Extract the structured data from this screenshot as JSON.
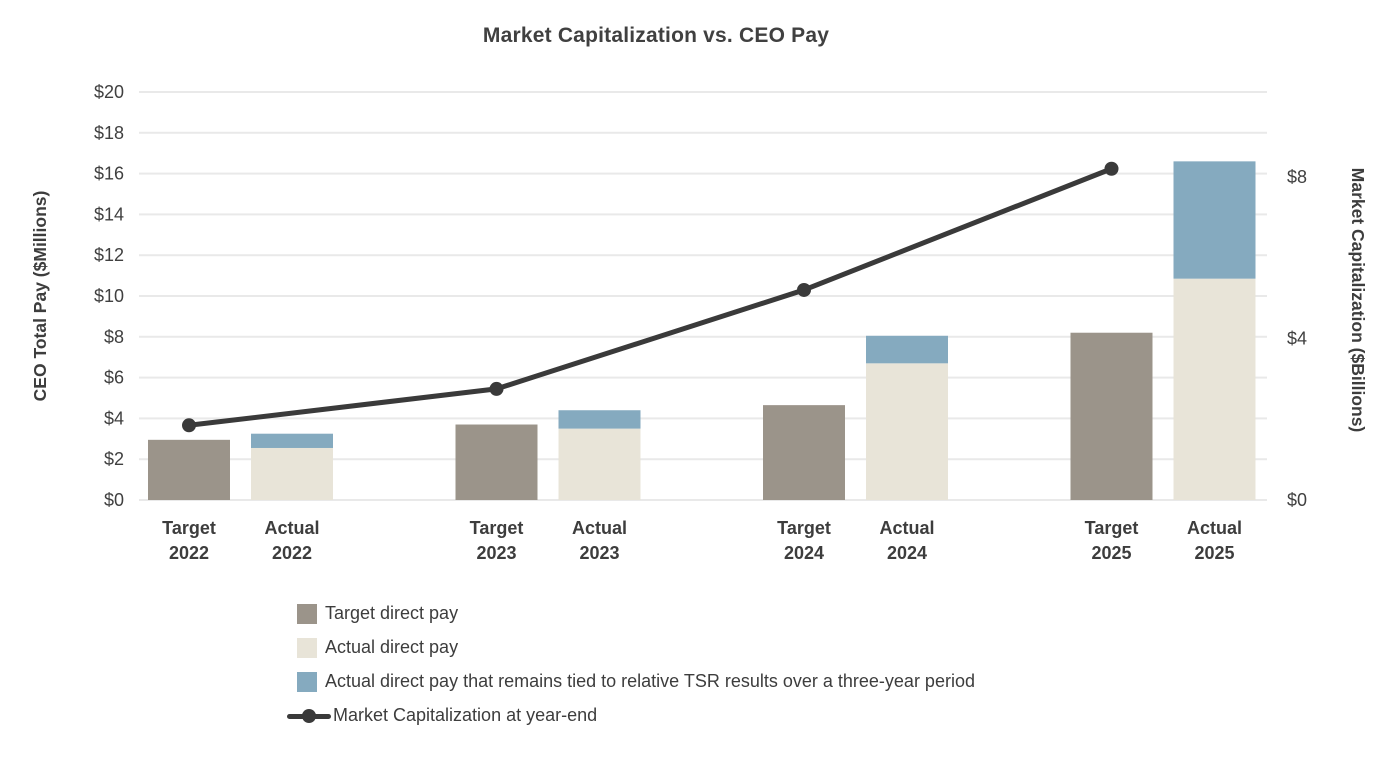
{
  "title": "Market Capitalization vs. CEO Pay",
  "chart_data": {
    "type": "combo_bar_line",
    "title": "Market Capitalization vs. CEO Pay",
    "grid": true,
    "years": [
      "2022",
      "2023",
      "2024",
      "2025"
    ],
    "x_labels": [
      {
        "top": "Target",
        "year": "2022"
      },
      {
        "top": "Actual",
        "year": "2022"
      },
      {
        "top": "Target",
        "year": "2023"
      },
      {
        "top": "Actual",
        "year": "2023"
      },
      {
        "top": "Target",
        "year": "2024"
      },
      {
        "top": "Actual",
        "year": "2024"
      },
      {
        "top": "Target",
        "year": "2025"
      },
      {
        "top": "Actual",
        "year": "2025"
      }
    ],
    "left_axis": {
      "label": "CEO Total Pay ($Millions)",
      "min": 0,
      "max": 20,
      "tick_step": 2,
      "ticks": [
        {
          "value": 0,
          "label": "$0"
        },
        {
          "value": 2,
          "label": "$2"
        },
        {
          "value": 4,
          "label": "$4"
        },
        {
          "value": 6,
          "label": "$6"
        },
        {
          "value": 8,
          "label": "$8"
        },
        {
          "value": 10,
          "label": "$10"
        },
        {
          "value": 12,
          "label": "$12"
        },
        {
          "value": 14,
          "label": "$14"
        },
        {
          "value": 16,
          "label": "$16"
        },
        {
          "value": 18,
          "label": "$18"
        },
        {
          "value": 20,
          "label": "$20"
        }
      ]
    },
    "right_axis": {
      "label": "Market Capitalization ($Billions)",
      "min": 0,
      "max": 10.1,
      "ticks": [
        {
          "value": 0,
          "label": "$0"
        },
        {
          "value": 4,
          "label": "$4"
        },
        {
          "value": 8,
          "label": "$8"
        }
      ]
    },
    "bar_series": [
      {
        "name": "Target direct pay",
        "bar": "target",
        "stack": 0,
        "color": "#9b948a",
        "values": [
          2.95,
          3.7,
          4.65,
          8.2
        ]
      },
      {
        "name": "Actual direct pay",
        "bar": "actual",
        "stack": 0,
        "color": "#e8e4d8",
        "values": [
          2.55,
          3.5,
          6.7,
          10.85
        ]
      },
      {
        "name": "Actual direct pay that remains tied to relative TSR results over a three-year period",
        "bar": "actual",
        "stack": 1,
        "color": "#85aabf",
        "values": [
          0.7,
          0.9,
          1.35,
          5.75
        ]
      }
    ],
    "line_series": {
      "name": "Market Capitalization at year-end",
      "axis": "right",
      "color": "#3a3a3a",
      "values": [
        1.85,
        2.75,
        5.2,
        8.2
      ]
    },
    "legend": [
      {
        "swatch": "square",
        "color": "#9b948a",
        "label": "Target direct pay"
      },
      {
        "swatch": "square",
        "color": "#e8e4d8",
        "label": "Actual direct pay"
      },
      {
        "swatch": "square",
        "color": "#85aabf",
        "label": "Actual direct pay that remains tied to relative TSR results over a three-year period"
      },
      {
        "swatch": "line-dot",
        "color": "#3a3a3a",
        "label": "Market Capitalization at year-end"
      }
    ],
    "colors": {
      "grid": "#e9e9e9",
      "text": "#404040",
      "target_bar": "#9b948a",
      "actual_bar": "#e8e4d8",
      "tsr_bar": "#85aabf",
      "line": "#3a3a3a"
    }
  }
}
